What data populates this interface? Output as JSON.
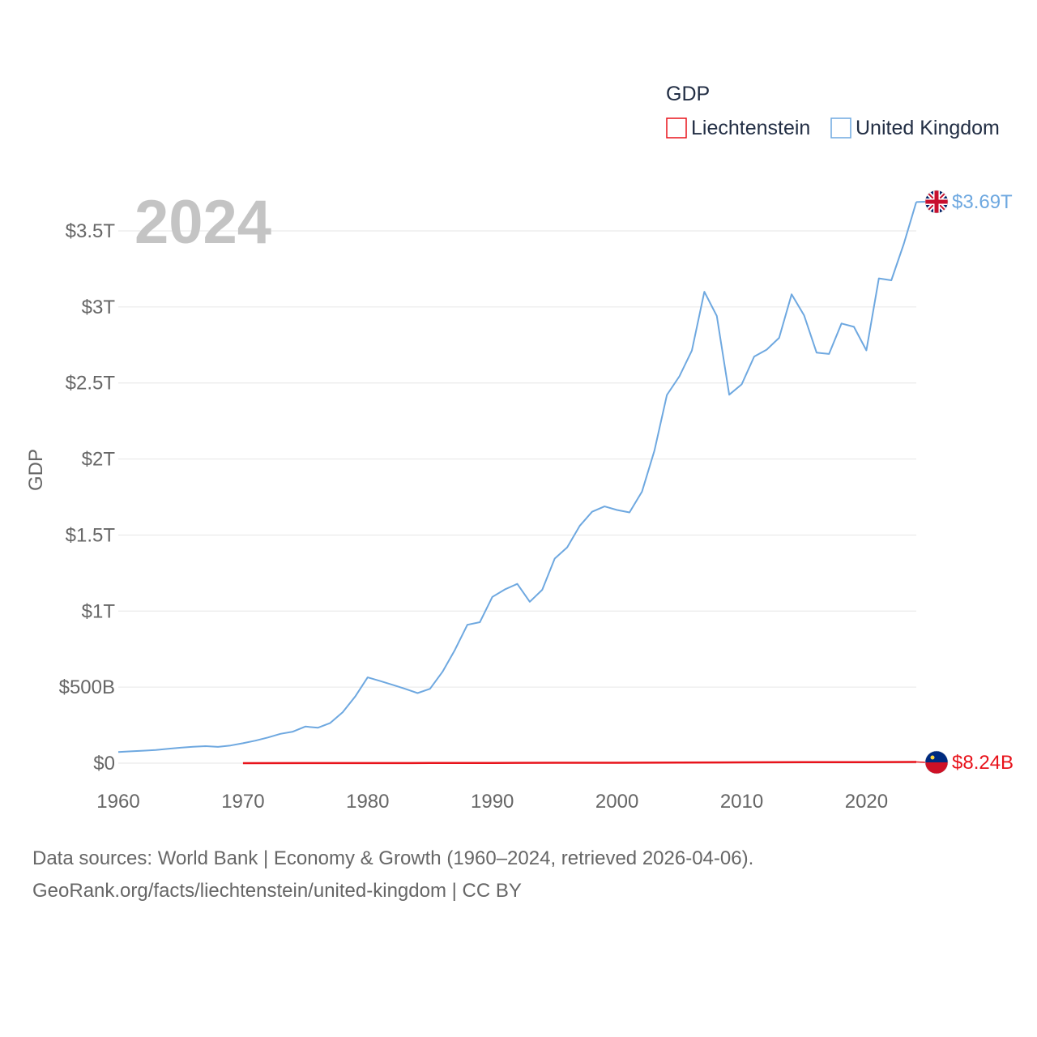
{
  "chart_data": {
    "type": "line",
    "year_label": "2024",
    "ylabel": "GDP",
    "legend": {
      "title": "GDP"
    },
    "xlim": [
      1960,
      2024
    ],
    "ylim": [
      0,
      3.5
    ],
    "x_ticks": [
      1960,
      1970,
      1980,
      1990,
      2000,
      2010,
      2020
    ],
    "x_tick_labels": [
      "1960",
      "1970",
      "1980",
      "1990",
      "2000",
      "2010",
      "2020"
    ],
    "y_ticks": [
      0,
      0.5,
      1,
      1.5,
      2,
      2.5,
      3,
      3.5
    ],
    "y_tick_labels": [
      "$0",
      "$500B",
      "$1T",
      "$1.5T",
      "$2T",
      "$2.5T",
      "$3T",
      "$3.5T"
    ],
    "series": [
      {
        "name": "United Kingdom",
        "color": "#6ea8e0",
        "end_label": "$3.69T",
        "flag_icon": "uk-flag-icon",
        "x": [
          1960,
          1961,
          1962,
          1963,
          1964,
          1965,
          1966,
          1967,
          1968,
          1969,
          1970,
          1971,
          1972,
          1973,
          1974,
          1975,
          1976,
          1977,
          1978,
          1979,
          1980,
          1981,
          1982,
          1983,
          1984,
          1985,
          1986,
          1987,
          1988,
          1989,
          1990,
          1991,
          1992,
          1993,
          1994,
          1995,
          1996,
          1997,
          1998,
          1999,
          2000,
          2001,
          2002,
          2003,
          2004,
          2005,
          2006,
          2007,
          2008,
          2009,
          2010,
          2011,
          2012,
          2013,
          2014,
          2015,
          2016,
          2017,
          2018,
          2019,
          2020,
          2021,
          2022,
          2023,
          2024
        ],
        "values": [
          0.073,
          0.078,
          0.082,
          0.087,
          0.095,
          0.102,
          0.108,
          0.112,
          0.107,
          0.116,
          0.131,
          0.148,
          0.169,
          0.193,
          0.207,
          0.241,
          0.233,
          0.264,
          0.335,
          0.438,
          0.564,
          0.54,
          0.515,
          0.489,
          0.461,
          0.489,
          0.601,
          0.745,
          0.91,
          0.927,
          1.093,
          1.142,
          1.179,
          1.061,
          1.14,
          1.345,
          1.419,
          1.56,
          1.653,
          1.688,
          1.665,
          1.649,
          1.785,
          2.055,
          2.421,
          2.544,
          2.713,
          3.1,
          2.94,
          2.423,
          2.491,
          2.674,
          2.719,
          2.797,
          3.083,
          2.945,
          2.7,
          2.691,
          2.891,
          2.869,
          2.714,
          3.188,
          3.175,
          3.415,
          3.69
        ]
      },
      {
        "name": "Liechtenstein",
        "color": "#e8131b",
        "end_label": "$8.24B",
        "flag_icon": "liechtenstein-flag-icon",
        "x": [
          1970,
          1975,
          1980,
          1985,
          1990,
          1995,
          2000,
          2005,
          2010,
          2015,
          2020,
          2024
        ],
        "values": [
          0.0001,
          0.0003,
          0.0006,
          0.0009,
          0.0017,
          0.0024,
          0.0025,
          0.0039,
          0.0051,
          0.0062,
          0.0065,
          0.00824
        ]
      }
    ]
  },
  "source": {
    "line1": "Data sources: World Bank | Economy & Growth (1960–2024, retrieved 2026-04-06).",
    "line2": "GeoRank.org/facts/liechtenstein/united-kingdom | CC BY"
  }
}
